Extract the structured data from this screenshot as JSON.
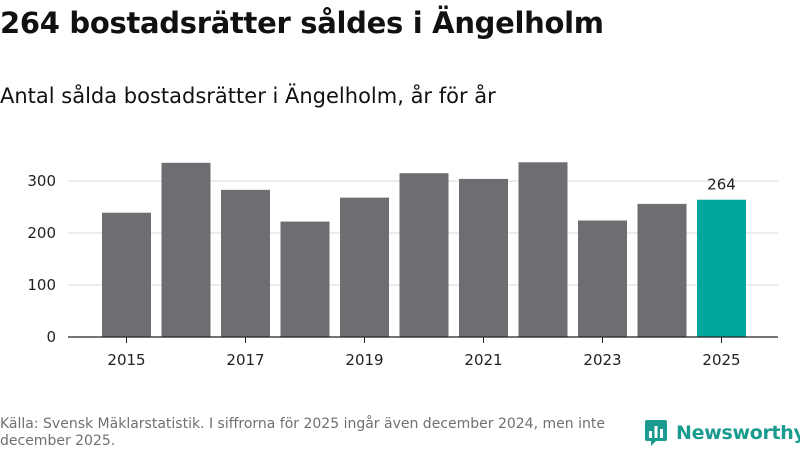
{
  "header": {
    "title": "264 bostadsrätter såldes i Ängelholm",
    "subtitle": "Antal sålda bostadsrätter i Ängelholm, år för år"
  },
  "footer": {
    "source": "Källa: Svensk Mäklarstatistik. I siffrorna för 2025 ingår även december 2024, men inte december 2025.",
    "brand": "Newsworthy"
  },
  "colors": {
    "bar": "#6d6d72",
    "highlight": "#00a79d",
    "brand": "#1a9b90"
  },
  "chart_data": {
    "type": "bar",
    "title": "Antal sålda bostadsrätter i Ängelholm, år för år",
    "xlabel": "",
    "ylabel": "",
    "categories": [
      "2015",
      "2016",
      "2017",
      "2018",
      "2019",
      "2020",
      "2021",
      "2022",
      "2023",
      "2024",
      "2025"
    ],
    "values": [
      239,
      335,
      283,
      222,
      268,
      315,
      304,
      336,
      224,
      256,
      264
    ],
    "highlight_index": 10,
    "data_labels": [
      {
        "index": 10,
        "text": "264"
      }
    ],
    "x_tick_labels": [
      "2015",
      "2017",
      "2019",
      "2021",
      "2023",
      "2025"
    ],
    "y_ticks": [
      0,
      100,
      200,
      300
    ],
    "ylim": [
      0,
      350
    ],
    "grid": true
  }
}
